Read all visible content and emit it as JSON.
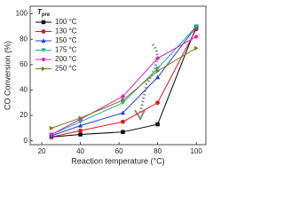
{
  "chart_data": {
    "type": "line",
    "x_label": "Reaction temperature (°C)",
    "y_label": "CO Conversion (%)",
    "legend_title_main": "T",
    "legend_title_sub": "pre",
    "legend": "upper left",
    "x": [
      25,
      40,
      62,
      80,
      100
    ],
    "xlim": [
      14,
      105
    ],
    "xticks": [
      20,
      40,
      60,
      80,
      100
    ],
    "ylim": [
      -3,
      106
    ],
    "yticks": [
      0,
      20,
      40,
      60,
      80,
      100
    ],
    "series": [
      {
        "name": "100 °C",
        "color": "#000000",
        "marker": "square",
        "values": [
          3,
          5,
          7,
          13,
          90
        ]
      },
      {
        "name": "130 °C",
        "color": "#e8141e",
        "marker": "circle",
        "values": [
          3,
          8,
          15,
          30,
          88
        ]
      },
      {
        "name": "150 °C",
        "color": "#1f3fe0",
        "marker": "tri-up",
        "values": [
          4,
          12,
          22,
          50,
          90
        ]
      },
      {
        "name": "175 °C",
        "color": "#1fb59a",
        "marker": "tri-down",
        "values": [
          5,
          15,
          30,
          57,
          90
        ]
      },
      {
        "name": "200 °C",
        "color": "#d81fd0",
        "marker": "diamond",
        "values": [
          5,
          17,
          35,
          65,
          82
        ]
      },
      {
        "name": "250 °C",
        "color": "#7a7a14",
        "marker": "tri-left",
        "values": [
          10,
          18,
          32,
          55,
          73
        ]
      }
    ]
  }
}
